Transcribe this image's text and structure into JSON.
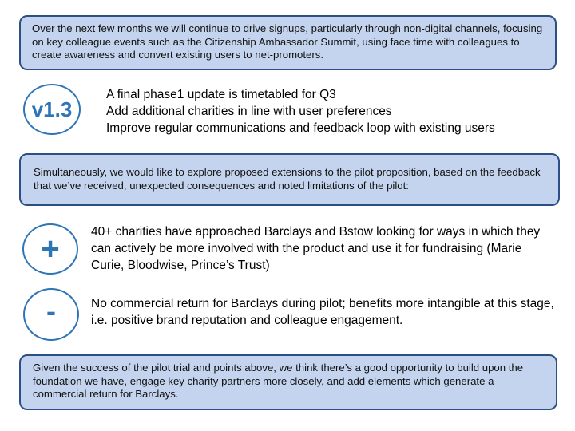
{
  "top_box": {
    "text": "Over the next few months we will continue to drive signups, particularly through non-digital channels, focusing on key colleague events such as the Citizenship Ambassador Summit, using face time with colleagues to create awareness and convert existing users to net-promoters."
  },
  "version_section": {
    "badge": "v1.3",
    "items": [
      "A final phase1 update is timetabled for Q3",
      "Add additional charities in line with user preferences",
      "Improve regular communications and feedback loop with existing users"
    ]
  },
  "middle_box": {
    "text": "Simultaneously, we would like to explore proposed extensions to the pilot proposition, based on the feedback that we’ve received, unexpected consequences and noted limitations of the pilot:"
  },
  "plus_section": {
    "symbol": "+",
    "text": "40+ charities have approached Barclays and Bstow looking for ways in which they can actively be more involved with the product and use it for fundraising (Marie Curie, Bloodwise, Prince’s Trust)"
  },
  "minus_section": {
    "symbol": "-",
    "text": "No commercial return for Barclays during pilot; benefits more intangible at this stage, i.e. positive brand reputation and colleague engagement."
  },
  "bottom_box": {
    "text": "Given the success of the pilot trial and points above, we think there’s a good opportunity to build upon the foundation we have, engage key charity partners more closely, and add elements which generate a commercial return for Barclays."
  },
  "colors": {
    "box_fill": "#c5d4ee",
    "box_border": "#2b4f86",
    "accent": "#2e75b6"
  }
}
